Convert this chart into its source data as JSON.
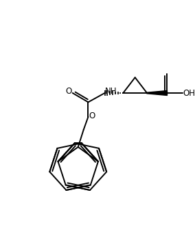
{
  "bg_color": "#ffffff",
  "line_color": "#000000",
  "lw": 1.4,
  "fig_width": 2.84,
  "fig_height": 3.48,
  "dpi": 100,
  "xlim": [
    0,
    10
  ],
  "ylim": [
    0,
    12.26
  ]
}
